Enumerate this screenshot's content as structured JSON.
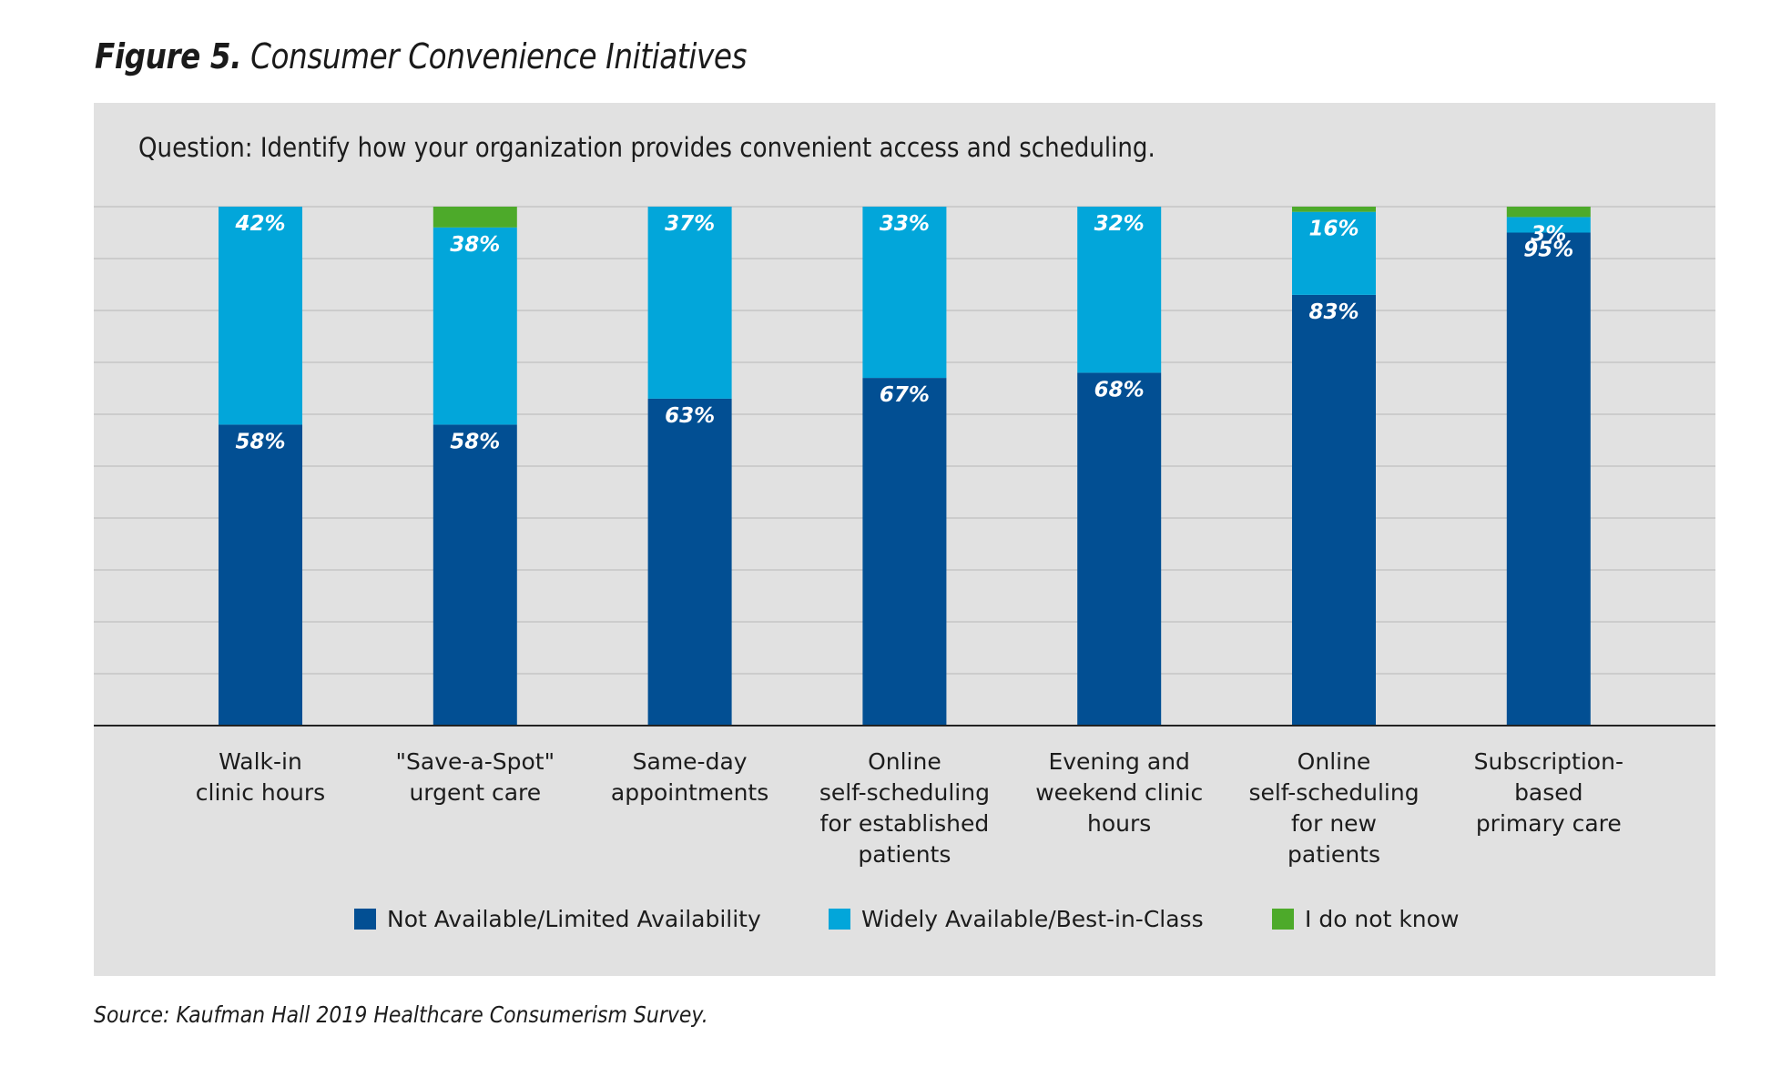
{
  "figure": {
    "title_number": "Figure 5.",
    "title_text": "Consumer Convenience Initiatives",
    "question": "Question: Identify how your organization provides convenient access and scheduling.",
    "source": "Source: Kaufman Hall 2019 Healthcare Consumerism Survey."
  },
  "colors": {
    "not_available": "#024f93",
    "widely_available": "#02a6da",
    "do_not_know": "#4daa2a",
    "panel": "#e1e1e1",
    "grid": "#c6c6c6",
    "axis": "#222222"
  },
  "legend": [
    {
      "label": "Not Available/Limited Availability",
      "color": "#024f93"
    },
    {
      "label": "Widely Available/Best-in-Class",
      "color": "#02a6da"
    },
    {
      "label": "I do not know",
      "color": "#4daa2a"
    }
  ],
  "chart_data": {
    "type": "bar",
    "stacked": true,
    "orientation": "vertical",
    "title": "Figure 5. Consumer Convenience Initiatives",
    "subtitle": "Question: Identify how your organization provides convenient access and scheduling.",
    "xlabel": "",
    "ylabel": "",
    "ylim": [
      0,
      100
    ],
    "y_unit": "%",
    "grid": true,
    "grid_step": 10,
    "legend_position": "bottom",
    "categories": [
      [
        "Walk-in",
        "clinic hours"
      ],
      [
        "\"Save-a-Spot\"",
        "urgent care"
      ],
      [
        "Same-day",
        "appointments"
      ],
      [
        "Online",
        "self-scheduling",
        "for established",
        "patients"
      ],
      [
        "Evening and",
        "weekend clinic",
        "hours"
      ],
      [
        "Online",
        "self-scheduling",
        "for new",
        "patients"
      ],
      [
        "Subscription-",
        "based",
        "primary care"
      ]
    ],
    "series": [
      {
        "name": "Not Available/Limited Availability",
        "color": "#024f93",
        "values": [
          58,
          58,
          63,
          67,
          68,
          83,
          95
        ],
        "labels": [
          "58%",
          "58%",
          "63%",
          "67%",
          "68%",
          "83%",
          "95%"
        ]
      },
      {
        "name": "Widely Available/Best-in-Class",
        "color": "#02a6da",
        "values": [
          42,
          38,
          37,
          33,
          32,
          16,
          3
        ],
        "labels": [
          "42%",
          "38%",
          "37%",
          "33%",
          "32%",
          "16%",
          "3%"
        ]
      },
      {
        "name": "I do not know",
        "color": "#4daa2a",
        "values": [
          0,
          4,
          0,
          0,
          0,
          1,
          2
        ],
        "labels": [
          "",
          "",
          "",
          "",
          "",
          "",
          ""
        ]
      }
    ],
    "source": "Source: Kaufman Hall 2019 Healthcare Consumerism Survey."
  }
}
